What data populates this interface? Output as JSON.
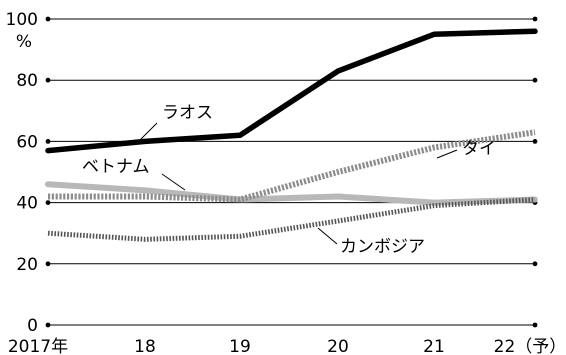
{
  "chart_data": {
    "type": "line",
    "title": "",
    "xlabel": "",
    "ylabel": "%",
    "ylim": [
      0,
      100
    ],
    "yticks": [
      0,
      20,
      40,
      60,
      80,
      100
    ],
    "grid": true,
    "categories": [
      "2017年",
      "18",
      "19",
      "20",
      "21",
      "22（予）"
    ],
    "series": [
      {
        "name": "ラオス",
        "values": [
          57,
          60,
          62,
          83,
          95,
          96
        ],
        "color": "#000000",
        "style": "solid-thick"
      },
      {
        "name": "タイ",
        "values": [
          42,
          42,
          41,
          50,
          58,
          63
        ],
        "color": "#8c8c8c",
        "style": "dotted"
      },
      {
        "name": "ベトナム",
        "values": [
          46,
          44,
          41,
          42,
          40,
          41
        ],
        "color": "#b8b8b8",
        "style": "solid-light"
      },
      {
        "name": "カンボジア",
        "values": [
          30,
          28,
          29,
          34,
          39,
          41
        ],
        "color": "#555555",
        "style": "dotted-dark"
      }
    ]
  }
}
